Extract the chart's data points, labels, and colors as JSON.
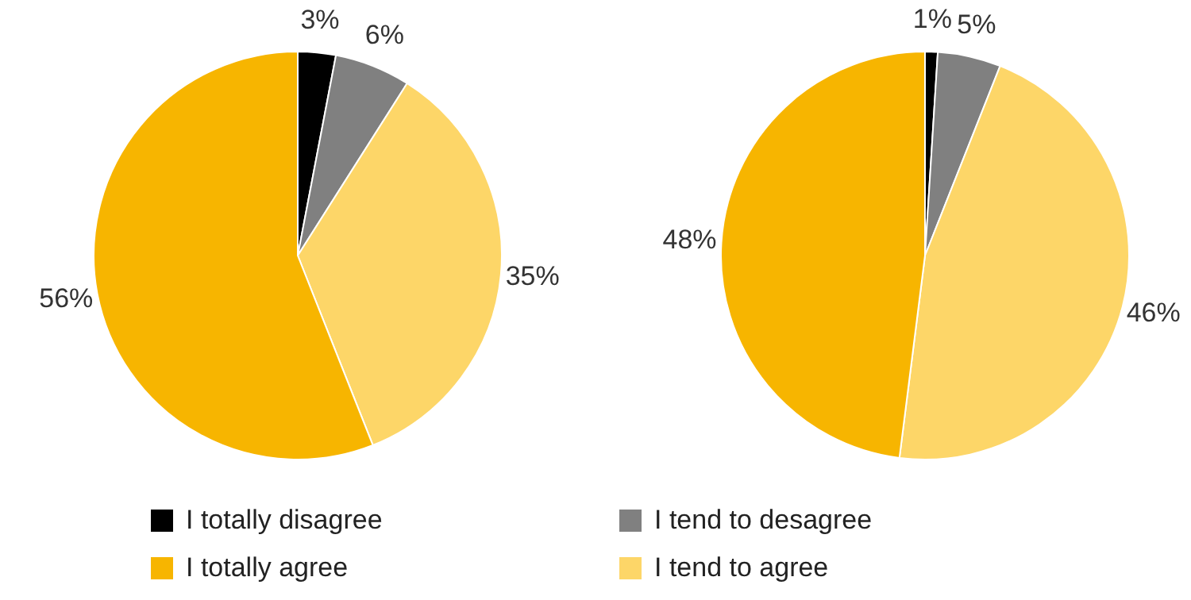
{
  "chart_data": [
    {
      "type": "pie",
      "categories": [
        "I totally disagree",
        "I tend to desagree",
        "I tend to agree",
        "I totally agree"
      ],
      "values": [
        3,
        6,
        35,
        56
      ],
      "colors": [
        "#000000",
        "#808080",
        "#fdd668",
        "#f7b500"
      ],
      "value_labels": [
        "3%",
        "6%",
        "35%",
        "56%"
      ],
      "legend": "bottom"
    },
    {
      "type": "pie",
      "values": [
        1,
        5,
        46,
        48
      ],
      "colors": [
        "#000000",
        "#808080",
        "#fdd668",
        "#f7b500"
      ],
      "value_labels": [
        "1%",
        "5%",
        "46%",
        "48%"
      ]
    }
  ]
}
